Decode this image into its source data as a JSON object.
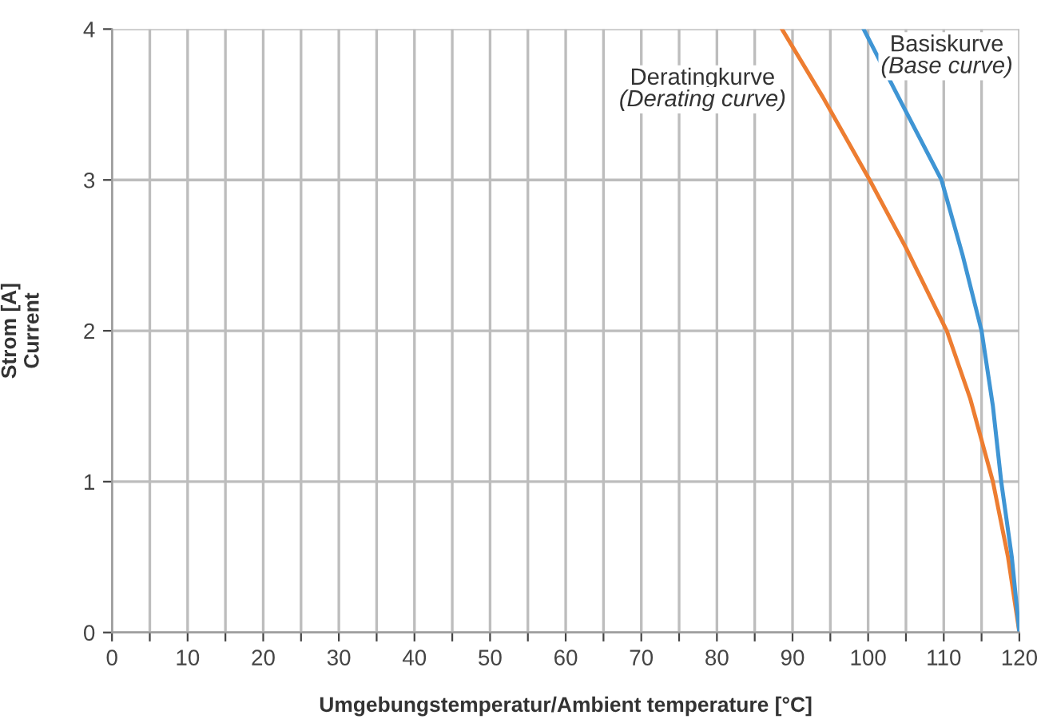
{
  "chart_data": {
    "type": "line",
    "xlabel": "Umgebungstemperatur/Ambient temperature [°C]",
    "ylabel": "Strom [A]\nCurrent",
    "xlim": [
      0,
      120
    ],
    "ylim": [
      0,
      4
    ],
    "xticks": [
      0,
      {
        "value": 5,
        "label": null
      },
      10,
      {
        "value": 15,
        "label": null
      },
      20,
      {
        "value": 25,
        "label": null
      },
      30,
      {
        "value": 35,
        "label": null
      },
      40,
      {
        "value": 45,
        "label": null
      },
      50,
      {
        "value": 55,
        "label": null
      },
      60,
      {
        "value": 65,
        "label": null
      },
      70,
      {
        "value": 75,
        "label": null
      },
      80,
      {
        "value": 85,
        "label": null
      },
      90,
      {
        "value": 95,
        "label": null
      },
      100,
      {
        "value": 105,
        "label": null
      },
      110,
      {
        "value": 115,
        "label": null
      },
      120
    ],
    "yticks": [
      0,
      1,
      2,
      3,
      4
    ],
    "grid": true,
    "marker": "none",
    "line_style": "solid",
    "series": [
      {
        "name": "Deratingkurve\n(Derating curve)",
        "color": "#ed7d31",
        "x": [
          88.6,
          94,
          100.2,
          105,
          110.4,
          113.5,
          116.5,
          118.5,
          120
        ],
        "values": [
          4,
          3.55,
          3,
          2.55,
          2,
          1.55,
          1,
          0.5,
          0
        ]
      },
      {
        "name": "Basiskurve\n(Base curve)",
        "color": "#3f95d4",
        "x": [
          99.4,
          104,
          109.7,
          112.5,
          115,
          116.5,
          117.6,
          119,
          120
        ],
        "values": [
          4,
          3.55,
          3,
          2.5,
          2,
          1.5,
          1,
          0.5,
          0
        ]
      }
    ]
  }
}
